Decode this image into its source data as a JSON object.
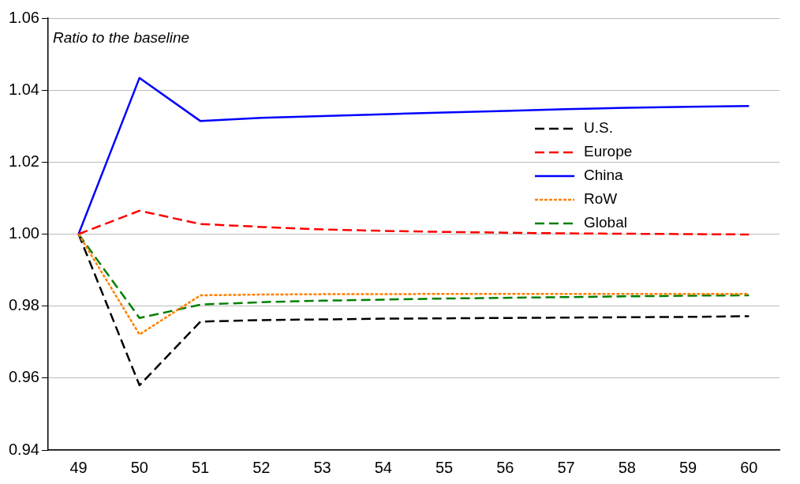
{
  "chart_data": {
    "type": "line",
    "annotations": [
      "Ratio to the baseline"
    ],
    "categories": [
      "49",
      "50",
      "51",
      "52",
      "53",
      "54",
      "55",
      "56",
      "57",
      "58",
      "59",
      "60"
    ],
    "series": [
      {
        "name": "U.S.",
        "color": "#000000",
        "line_style": "dashed",
        "values": [
          1.0,
          0.958,
          0.9757,
          0.9761,
          0.9763,
          0.9765,
          0.9766,
          0.9767,
          0.9768,
          0.9769,
          0.977,
          0.9772
        ]
      },
      {
        "name": "Europe",
        "color": "#ff0000",
        "line_style": "dashed",
        "values": [
          1.0,
          1.0065,
          1.0028,
          1.002,
          1.0013,
          1.0009,
          1.0006,
          1.0004,
          1.0002,
          1.0001,
          1.0,
          0.9999
        ]
      },
      {
        "name": "China",
        "color": "#0000ff",
        "line_style": "solid",
        "values": [
          1.0,
          1.0434,
          1.0314,
          1.0323,
          1.0328,
          1.0333,
          1.0338,
          1.0342,
          1.0347,
          1.0351,
          1.0354,
          1.0356
        ]
      },
      {
        "name": "RoW",
        "color": "#ff8000",
        "line_style": "dotted",
        "values": [
          1.0,
          0.9721,
          0.983,
          0.9832,
          0.9833,
          0.9833,
          0.9834,
          0.9834,
          0.9834,
          0.9834,
          0.9834,
          0.9834
        ]
      },
      {
        "name": "Global",
        "color": "#008000",
        "line_style": "dashed",
        "values": [
          1.0,
          0.9767,
          0.9804,
          0.9811,
          0.9815,
          0.9818,
          0.9821,
          0.9823,
          0.9825,
          0.9827,
          0.9829,
          0.983
        ]
      }
    ],
    "ylim": [
      0.94,
      1.06
    ],
    "yticks": [
      0.94,
      0.96,
      0.98,
      {
        "value": 1.0,
        "label": "1.00"
      },
      1.02,
      1.04,
      1.06
    ],
    "grid": "y",
    "legend": "right",
    "marker": "none"
  }
}
